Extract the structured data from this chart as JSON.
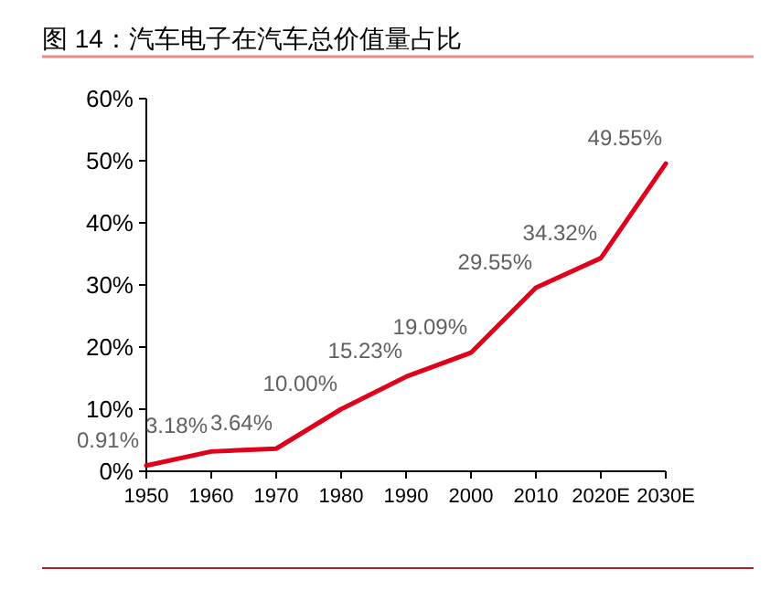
{
  "chart_data": {
    "type": "line",
    "title": "图 14：汽车电子在汽车总价值量占比",
    "categories": [
      "1950",
      "1960",
      "1970",
      "1980",
      "1990",
      "2000",
      "2010",
      "2020E",
      "2030E"
    ],
    "series": [
      {
        "color": "#e0001b",
        "values": [
          0.91,
          3.18,
          3.64,
          10.0,
          15.23,
          19.09,
          29.55,
          34.32,
          49.55
        ],
        "value_labels": [
          "0.91%",
          "3.18%",
          "3.64%",
          "10.00%",
          "15.23%",
          "19.09%",
          "29.55%",
          "34.32%",
          "49.55%"
        ]
      }
    ],
    "ylim": [
      0,
      60
    ],
    "yticks": [
      {
        "value": 0,
        "label": "0%"
      },
      {
        "value": 10,
        "label": "10%"
      },
      {
        "value": 20,
        "label": "20%"
      },
      {
        "value": 30,
        "label": "30%"
      },
      {
        "value": 40,
        "label": "40%"
      },
      {
        "value": 50,
        "label": "50%"
      },
      {
        "value": 60,
        "label": "60%"
      }
    ],
    "marker": "none",
    "line_style": "solid"
  }
}
